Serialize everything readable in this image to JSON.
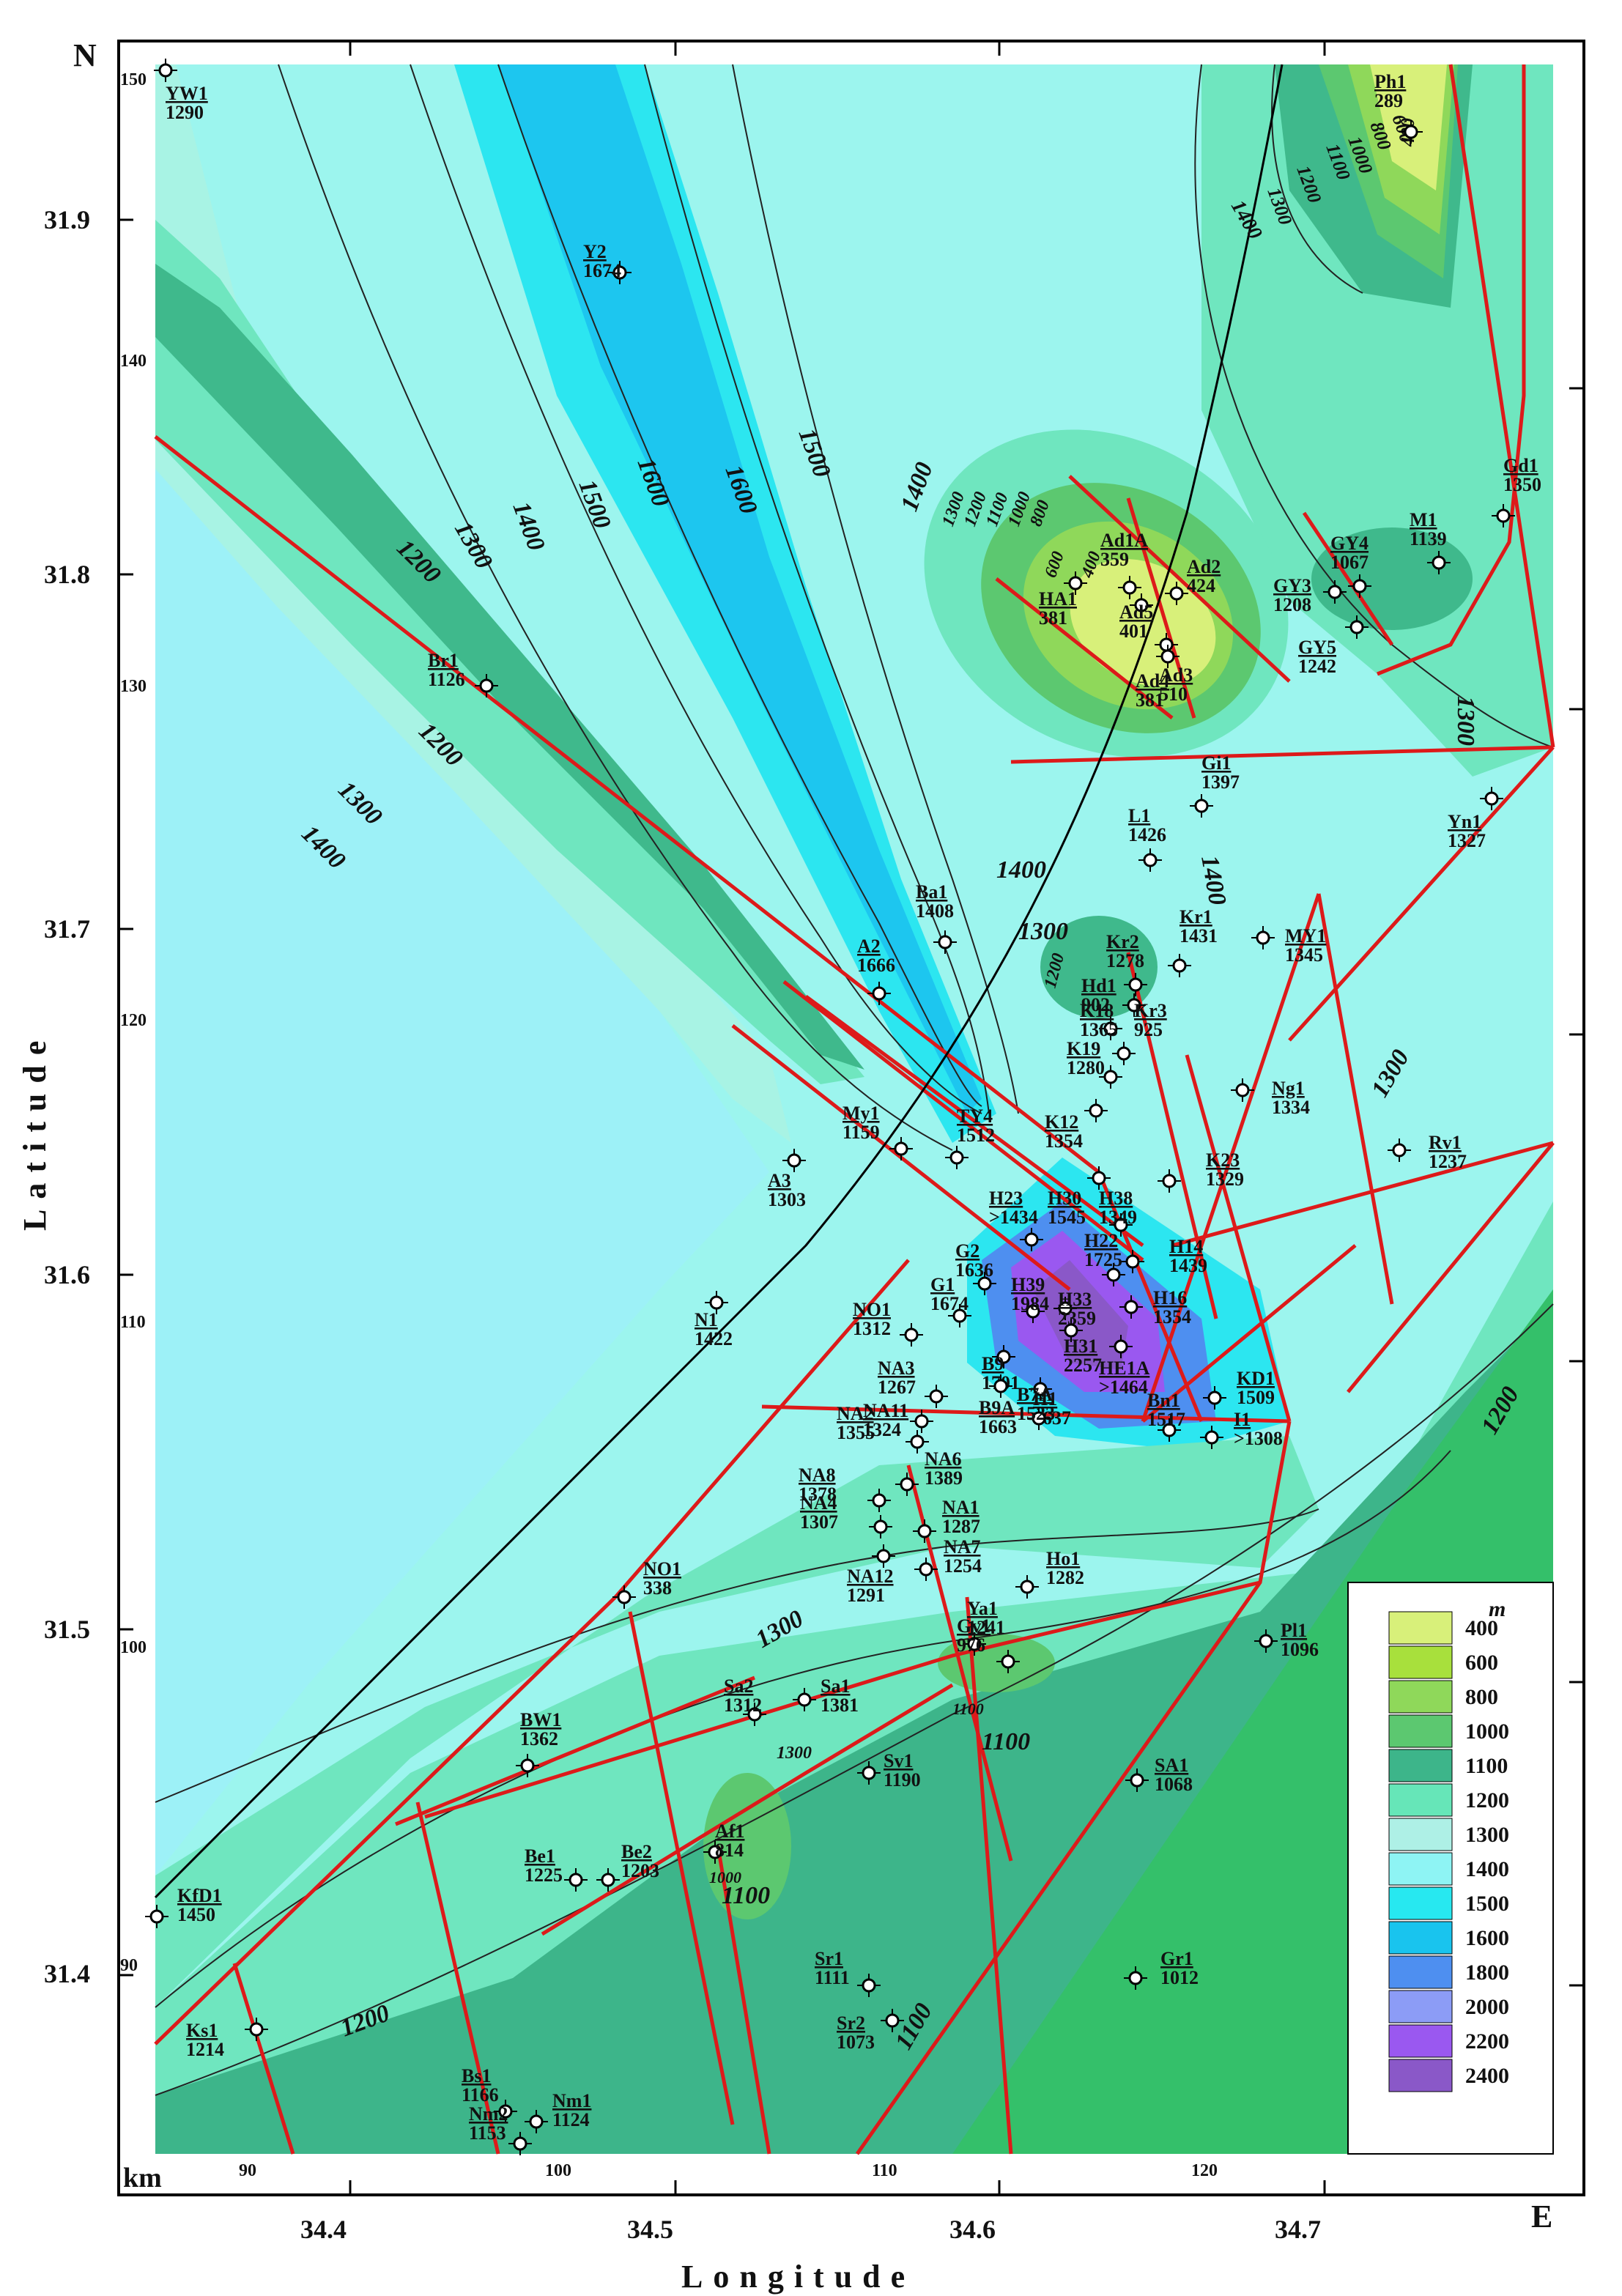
{
  "map": {
    "north_label": "N",
    "east_label": "E",
    "km_label": "km",
    "x_axis_title": "Longitude",
    "y_axis_title": "Latitude",
    "longitude_ticks": [
      "34.4",
      "34.5",
      "34.6",
      "34.7"
    ],
    "latitude_ticks": [
      "31.9",
      "31.8",
      "31.7",
      "31.6",
      "31.5",
      "31.4"
    ],
    "km_ticks_x": [
      "90",
      "100",
      "110",
      "120"
    ],
    "km_ticks_y": [
      "150",
      "140",
      "130",
      "120",
      "110",
      "100",
      "90"
    ]
  },
  "legend": {
    "unit": "m",
    "items": [
      {
        "label": "400",
        "color": "#d8f07a"
      },
      {
        "label": "600",
        "color": "#a8e03c"
      },
      {
        "label": "800",
        "color": "#8fd85a"
      },
      {
        "label": "1000",
        "color": "#5cc870"
      },
      {
        "label": "1100",
        "color": "#3db58a"
      },
      {
        "label": "1200",
        "color": "#66e6b8"
      },
      {
        "label": "1300",
        "color": "#aef0e6"
      },
      {
        "label": "1400",
        "color": "#8ef4f4"
      },
      {
        "label": "1500",
        "color": "#27e8f0"
      },
      {
        "label": "1600",
        "color": "#19c4ee"
      },
      {
        "label": "1800",
        "color": "#4e8ff0"
      },
      {
        "label": "2000",
        "color": "#8c9cf6"
      },
      {
        "label": "2200",
        "color": "#9a58f0"
      },
      {
        "label": "2400",
        "color": "#8a58c8"
      }
    ]
  },
  "contour_labels": [
    "1600",
    "1500",
    "1500",
    "1600",
    "1400",
    "1300",
    "1200",
    "1200",
    "1300",
    "1400",
    "1400",
    "1300",
    "1200",
    "1100",
    "1000",
    "800",
    "600",
    "400",
    "1400",
    "1300",
    "1200",
    "1100",
    "1000",
    "800",
    "600",
    "400",
    "1300",
    "1400",
    "1400",
    "1300",
    "1200",
    "1300",
    "1300",
    "1200",
    "1100",
    "1100",
    "1000",
    "1100",
    "1300",
    "1100",
    "1200"
  ],
  "wells": [
    {
      "name": "YW1",
      "value": "1290"
    },
    {
      "name": "Y2",
      "value": "1674"
    },
    {
      "name": "Ph1",
      "value": "289"
    },
    {
      "name": "Gd1",
      "value": "1350"
    },
    {
      "name": "M1",
      "value": "1139"
    },
    {
      "name": "GY4",
      "value": "1067"
    },
    {
      "name": "GY3",
      "value": "1208"
    },
    {
      "name": "GY5",
      "value": "1242"
    },
    {
      "name": "Ad1A",
      "value": "359"
    },
    {
      "name": "Ad2",
      "value": "424"
    },
    {
      "name": "Ad5",
      "value": "401"
    },
    {
      "name": "Ad3",
      "value": "510"
    },
    {
      "name": "HA1",
      "value": "381"
    },
    {
      "name": "Ad4",
      "value": "381"
    },
    {
      "name": "Br1",
      "value": "1126"
    },
    {
      "name": "Gi1",
      "value": "1397"
    },
    {
      "name": "Yn1",
      "value": "1327"
    },
    {
      "name": "L1",
      "value": "1426"
    },
    {
      "name": "Ba1",
      "value": "1408"
    },
    {
      "name": "Kr1",
      "value": "1431"
    },
    {
      "name": "MY1",
      "value": "1345"
    },
    {
      "name": "Kr2",
      "value": "1278"
    },
    {
      "name": "Kr3",
      "value": "925"
    },
    {
      "name": "A2",
      "value": "1666"
    },
    {
      "name": "Hd1",
      "value": "902"
    },
    {
      "name": "K18",
      "value": "1365"
    },
    {
      "name": "K19",
      "value": "1280"
    },
    {
      "name": "Ng1",
      "value": "1334"
    },
    {
      "name": "K12",
      "value": "1354"
    },
    {
      "name": "My1",
      "value": "1159"
    },
    {
      "name": "TY4",
      "value": "1512"
    },
    {
      "name": "Rv1",
      "value": "1237"
    },
    {
      "name": "A3",
      "value": "1303"
    },
    {
      "name": "H30",
      "value": "1545"
    },
    {
      "name": "K23",
      "value": "1329"
    },
    {
      "name": "H23",
      "value": ">1434"
    },
    {
      "name": "H38",
      "value": "1349"
    },
    {
      "name": "G2",
      "value": "1636"
    },
    {
      "name": "H14",
      "value": "1439"
    },
    {
      "name": "H22",
      "value": "1725"
    },
    {
      "name": "H39",
      "value": "1984"
    },
    {
      "name": "H16",
      "value": "1354"
    },
    {
      "name": "G1",
      "value": "1674"
    },
    {
      "name": "H33",
      "value": "2359"
    },
    {
      "name": "N1",
      "value": "1422"
    },
    {
      "name": "NO1",
      "value": "1312"
    },
    {
      "name": "H31",
      "value": "2257"
    },
    {
      "name": "HE1A",
      "value": ">1464"
    },
    {
      "name": "KD1",
      "value": "1509"
    },
    {
      "name": "B9",
      "value": "1701"
    },
    {
      "name": "B9A",
      "value": "1663"
    },
    {
      "name": "H1",
      "value": "1637"
    },
    {
      "name": "NA3",
      "value": "1267"
    },
    {
      "name": "NA11",
      "value": "1324"
    },
    {
      "name": "Bn1",
      "value": "1517"
    },
    {
      "name": "I1",
      "value": ">1308"
    },
    {
      "name": "B7A",
      "value": "1523"
    },
    {
      "name": "NA2",
      "value": "1355"
    },
    {
      "name": "NA8",
      "value": "1378"
    },
    {
      "name": "NA6",
      "value": "1389"
    },
    {
      "name": "NA4",
      "value": "1307"
    },
    {
      "name": "NA1",
      "value": "1287"
    },
    {
      "name": "NA12",
      "value": "1291"
    },
    {
      "name": "NA7",
      "value": "1254"
    },
    {
      "name": "Ho1",
      "value": "1282"
    },
    {
      "name": "NO1",
      "value": "338"
    },
    {
      "name": "Ya1",
      "value": "1241"
    },
    {
      "name": "Gv1",
      "value": "976"
    },
    {
      "name": "Pl1",
      "value": "1096"
    },
    {
      "name": "Sa1",
      "value": "1381"
    },
    {
      "name": "BW1",
      "value": "1362"
    },
    {
      "name": "Sa2",
      "value": "1312"
    },
    {
      "name": "Sv1",
      "value": "1190"
    },
    {
      "name": "SA1",
      "value": "1068"
    },
    {
      "name": "Af1",
      "value": "814"
    },
    {
      "name": "Be1",
      "value": "1225"
    },
    {
      "name": "Be2",
      "value": "1203"
    },
    {
      "name": "KfD1",
      "value": "1450"
    },
    {
      "name": "Sr1",
      "value": "1111"
    },
    {
      "name": "Gr1",
      "value": "1012"
    },
    {
      "name": "Ks1",
      "value": "1214"
    },
    {
      "name": "Sr2",
      "value": "1073"
    },
    {
      "name": "Bs1",
      "value": "1166"
    },
    {
      "name": "Nm1",
      "value": "1124"
    },
    {
      "name": "Nm2",
      "value": "1153"
    }
  ]
}
